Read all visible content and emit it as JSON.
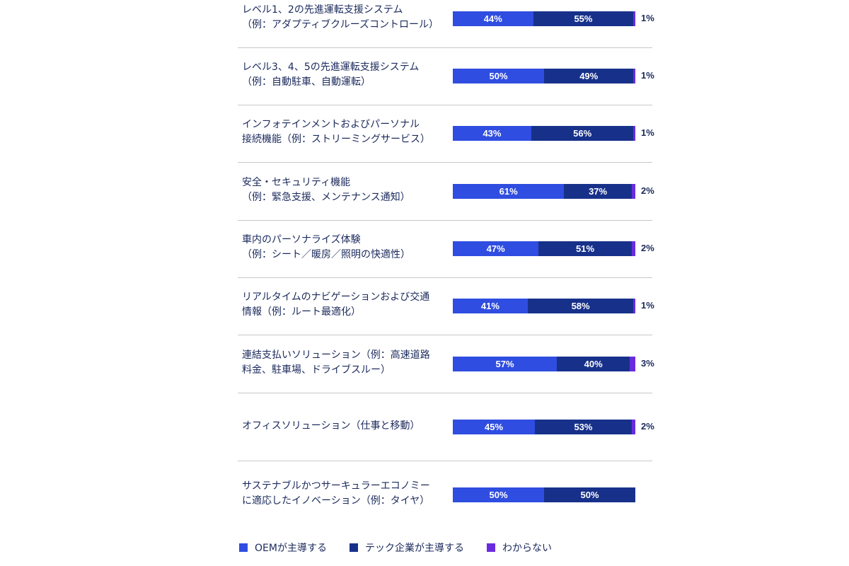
{
  "chart_data": {
    "type": "bar",
    "orientation": "horizontal",
    "stacked": true,
    "unit": "%",
    "categories": [
      "レベル1、2の先進運転支援システム\n（例：アダプティブクルーズコントロール）",
      "レベル3、4、5の先進運転支援システム\n（例：自動駐車、自動運転）",
      "インフォテインメントおよびパーソナル\n接続機能（例：ストリーミングサービス）",
      "安全・セキュリティ機能\n（例：緊急支援、メンテナンス通知）",
      "車内のパーソナライズ体験\n（例：シート／暖房／照明の快適性）",
      "リアルタイムのナビゲーションおよび交通\n情報（例：ルート最適化）",
      "連結支払いソリューション（例：高速道路\n料金、駐車場、ドライブスルー）",
      "オフィスソリューション（仕事と移動）",
      "サステナブルかつサーキュラーエコノミー\nに適応したイノベーション（例：タイヤ）"
    ],
    "series": [
      {
        "name": "OEMが主導する",
        "color": "#2f4de0",
        "values": [
          44,
          50,
          43,
          61,
          47,
          41,
          57,
          45,
          50
        ]
      },
      {
        "name": "テック企業が主導する",
        "color": "#17318a",
        "values": [
          55,
          49,
          56,
          37,
          51,
          58,
          40,
          53,
          50
        ]
      },
      {
        "name": "わからない",
        "color": "#6a2be0",
        "values": [
          1,
          1,
          1,
          2,
          2,
          1,
          3,
          2,
          0
        ]
      }
    ],
    "legend": "bottom-left",
    "grid": false
  }
}
